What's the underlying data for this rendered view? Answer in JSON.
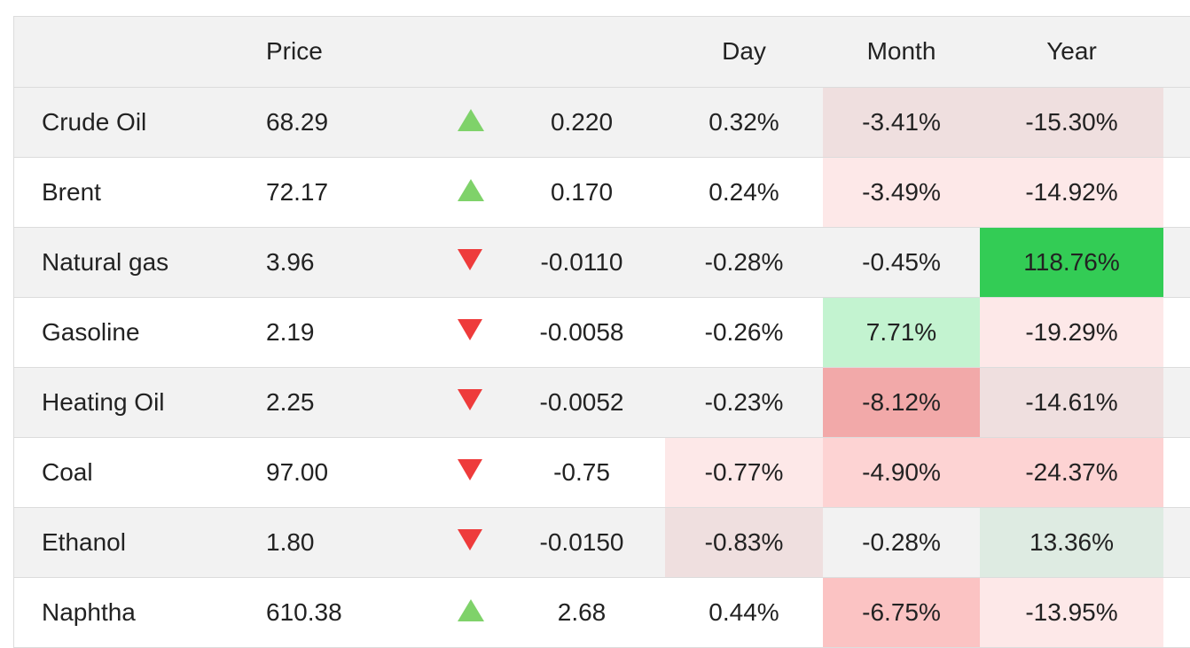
{
  "header": {
    "name": "",
    "price": "Price",
    "arrow": "",
    "change": "",
    "day": "Day",
    "month": "Month",
    "year": "Year"
  },
  "rows": [
    {
      "name": "Crude Oil",
      "price": "68.29",
      "direction": "up",
      "change": "0.220",
      "day": "0.32%",
      "month": "-3.41%",
      "year": "-15.30%",
      "day_bg": "",
      "month_bg": "#efdfdf",
      "year_bg": "#efdfdf"
    },
    {
      "name": "Brent",
      "price": "72.17",
      "direction": "up",
      "change": "0.170",
      "day": "0.24%",
      "month": "-3.49%",
      "year": "-14.92%",
      "day_bg": "",
      "month_bg": "#fde8e8",
      "year_bg": "#fde8e8"
    },
    {
      "name": "Natural gas",
      "price": "3.96",
      "direction": "down",
      "change": "-0.0110",
      "day": "-0.28%",
      "month": "-0.45%",
      "year": "118.76%",
      "day_bg": "",
      "month_bg": "",
      "year_bg": "#33cc55"
    },
    {
      "name": "Gasoline",
      "price": "2.19",
      "direction": "down",
      "change": "-0.0058",
      "day": "-0.26%",
      "month": "7.71%",
      "year": "-19.29%",
      "day_bg": "",
      "month_bg": "#c3f3d0",
      "year_bg": "#fde8e8"
    },
    {
      "name": "Heating Oil",
      "price": "2.25",
      "direction": "down",
      "change": "-0.0052",
      "day": "-0.23%",
      "month": "-8.12%",
      "year": "-14.61%",
      "day_bg": "",
      "month_bg": "#f2a9a9",
      "year_bg": "#efdfdf"
    },
    {
      "name": "Coal",
      "price": "97.00",
      "direction": "down",
      "change": "-0.75",
      "day": "-0.77%",
      "month": "-4.90%",
      "year": "-24.37%",
      "day_bg": "#fde8e8",
      "month_bg": "#fdd3d3",
      "year_bg": "#fdd3d3"
    },
    {
      "name": "Ethanol",
      "price": "1.80",
      "direction": "down",
      "change": "-0.0150",
      "day": "-0.83%",
      "month": "-0.28%",
      "year": "13.36%",
      "day_bg": "#efdfdf",
      "month_bg": "",
      "year_bg": "#deebe2"
    },
    {
      "name": "Naphtha",
      "price": "610.38",
      "direction": "up",
      "change": "2.68",
      "day": "0.44%",
      "month": "-6.75%",
      "year": "-13.95%",
      "day_bg": "",
      "month_bg": "#fbc3c3",
      "year_bg": "#fde8e8"
    }
  ],
  "colors": {
    "up_arrow": "#7fd26a",
    "down_arrow": "#ee3b3b",
    "header_bg": "#f2f2f2",
    "row_alt_bg": "#f2f2f2",
    "border": "#dcdcdc"
  },
  "icons": {
    "up": "triangle-up-icon",
    "down": "triangle-down-icon"
  }
}
